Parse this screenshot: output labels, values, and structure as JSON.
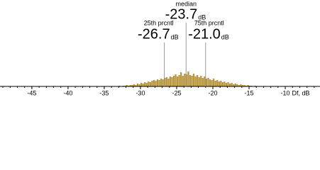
{
  "chart_data": {
    "type": "histogram",
    "x_label": "Df, dB",
    "xlim": [
      -49.4,
      -5.2
    ],
    "xticks": [
      -45,
      -40,
      -35,
      -30,
      -25,
      -20,
      -15,
      -10
    ],
    "xticks_minor": [
      -49,
      -48,
      -47,
      -46,
      -45,
      -44,
      -43,
      -42,
      -41,
      -40,
      -39,
      -38,
      -37,
      -36,
      -35,
      -34,
      -33,
      -32,
      -31,
      -30,
      -29,
      -28,
      -27,
      -26,
      -25,
      -24,
      -23,
      -22,
      -21,
      -20,
      -19,
      -18,
      -17,
      -16,
      -15,
      -14,
      -13,
      -12,
      -11,
      -10,
      -9,
      -8,
      -7,
      -6
    ],
    "ylim": [
      0,
      100
    ],
    "color": "#b8953a",
    "bins": [
      -33,
      -32.75,
      -32.5,
      -32.25,
      -32,
      -31.75,
      -31.5,
      -31.25,
      -31,
      -30.75,
      -30.5,
      -30.25,
      -30,
      -29.75,
      -29.5,
      -29.25,
      -29,
      -28.75,
      -28.5,
      -28.25,
      -28,
      -27.75,
      -27.5,
      -27.25,
      -27,
      -26.75,
      -26.5,
      -26.25,
      -26,
      -25.75,
      -25.5,
      -25.25,
      -25,
      -24.75,
      -24.5,
      -24.25,
      -24,
      -23.75,
      -23.5,
      -23.25,
      -23,
      -22.75,
      -22.5,
      -22.25,
      -22,
      -21.75,
      -21.5,
      -21.25,
      -21,
      -20.75,
      -20.5,
      -20.25,
      -20,
      -19.75,
      -19.5,
      -19.25,
      -19,
      -18.75,
      -18.5,
      -18.25,
      -18,
      -17.75,
      -17.5,
      -17.25,
      -17,
      -16.75,
      -16.5,
      -16.25,
      -16,
      -15.75,
      -15.5,
      -15.25,
      -15,
      -14.75,
      -14.5,
      -14.25,
      -14
    ],
    "values": [
      1,
      0,
      1,
      1,
      2,
      1,
      2,
      2,
      3,
      2,
      4,
      3,
      5,
      4,
      6,
      5,
      7,
      6,
      8,
      9,
      8,
      10,
      9,
      11,
      10,
      12,
      13,
      11,
      14,
      13,
      15,
      17,
      14,
      16,
      20,
      15,
      18,
      17,
      21,
      16,
      15,
      18,
      14,
      16,
      13,
      15,
      12,
      14,
      11,
      12,
      10,
      9,
      11,
      8,
      9,
      7,
      8,
      6,
      7,
      5,
      6,
      4,
      5,
      3,
      4,
      3,
      2,
      3,
      2,
      2,
      1,
      2,
      1,
      1,
      0,
      1
    ],
    "markers": {
      "names": [
        "25th prcntl",
        "median",
        "75th prcntl"
      ],
      "values": [
        -26.7,
        -23.7,
        -21.0
      ],
      "value_labels": [
        "-26.7",
        "-23.7",
        "-21.0"
      ],
      "unit": "dB",
      "color": "#999999"
    }
  }
}
